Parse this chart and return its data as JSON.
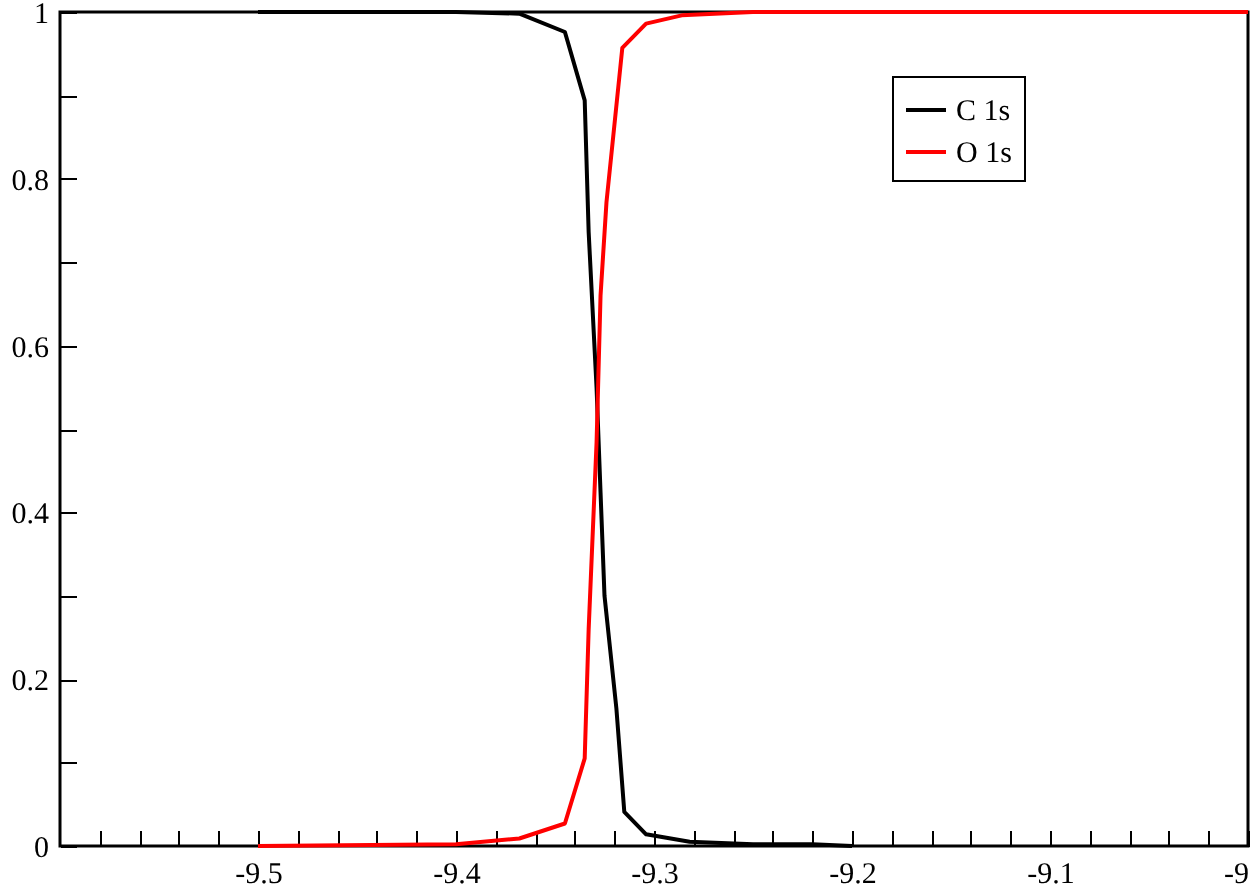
{
  "chart_data": {
    "type": "line",
    "xlim": [
      -9.6,
      -9
    ],
    "ylim": [
      0,
      1
    ],
    "xticks": [
      {
        "value": -9.58,
        "label": null
      },
      {
        "value": -9.56,
        "label": null
      },
      {
        "value": -9.54,
        "label": null
      },
      {
        "value": -9.52,
        "label": null
      },
      -9.5,
      {
        "value": -9.48,
        "label": null
      },
      {
        "value": -9.46,
        "label": null
      },
      {
        "value": -9.44,
        "label": null
      },
      {
        "value": -9.42,
        "label": null
      },
      -9.4,
      {
        "value": -9.38,
        "label": null
      },
      {
        "value": -9.36,
        "label": null
      },
      {
        "value": -9.34,
        "label": null
      },
      {
        "value": -9.32,
        "label": null
      },
      -9.3,
      {
        "value": -9.28,
        "label": null
      },
      {
        "value": -9.26,
        "label": null
      },
      {
        "value": -9.24,
        "label": null
      },
      {
        "value": -9.22,
        "label": null
      },
      -9.2,
      {
        "value": -9.18,
        "label": null
      },
      {
        "value": -9.16,
        "label": null
      },
      {
        "value": -9.14,
        "label": null
      },
      {
        "value": -9.12,
        "label": null
      },
      -9.1,
      {
        "value": -9.08,
        "label": null
      },
      {
        "value": -9.06,
        "label": null
      },
      {
        "value": -9.04,
        "label": null
      },
      {
        "value": -9.02,
        "label": null
      },
      -9
    ],
    "yticks": [
      0,
      {
        "value": 0.1,
        "label": null
      },
      0.2,
      {
        "value": 0.3,
        "label": null
      },
      0.4,
      {
        "value": 0.5,
        "label": null
      },
      0.6,
      {
        "value": 0.7,
        "label": null
      },
      0.8,
      {
        "value": 0.9,
        "label": null
      },
      1
    ],
    "grid": false,
    "legend": "top right",
    "line_style": "solid",
    "marker": "none",
    "series": [
      {
        "name": "C 1s",
        "color": "#000000",
        "x": [
          -9.5,
          -9.4,
          -9.368,
          -9.345,
          -9.335,
          -9.333,
          -9.329,
          -9.327,
          -9.325,
          -9.319,
          -9.315,
          -9.304,
          -9.282,
          -9.25,
          -9.22,
          -9.2
        ],
        "values": [
          1,
          1,
          0.998,
          0.976,
          0.894,
          0.736,
          0.549,
          0.424,
          0.3,
          0.165,
          0.041,
          0.014,
          0.005,
          0.002,
          0.002,
          0
        ]
      },
      {
        "name": "O 1s",
        "color": "#ff0000",
        "x": [
          -9.5,
          -9.4,
          -9.368,
          -9.345,
          -9.335,
          -9.333,
          -9.329,
          -9.327,
          -9.324,
          -9.316,
          -9.304,
          -9.286,
          -9.25,
          -9
        ],
        "values": [
          0,
          0.002,
          0.009,
          0.027,
          0.105,
          0.26,
          0.484,
          0.66,
          0.772,
          0.957,
          0.986,
          0.996,
          1,
          1
        ]
      }
    ]
  }
}
